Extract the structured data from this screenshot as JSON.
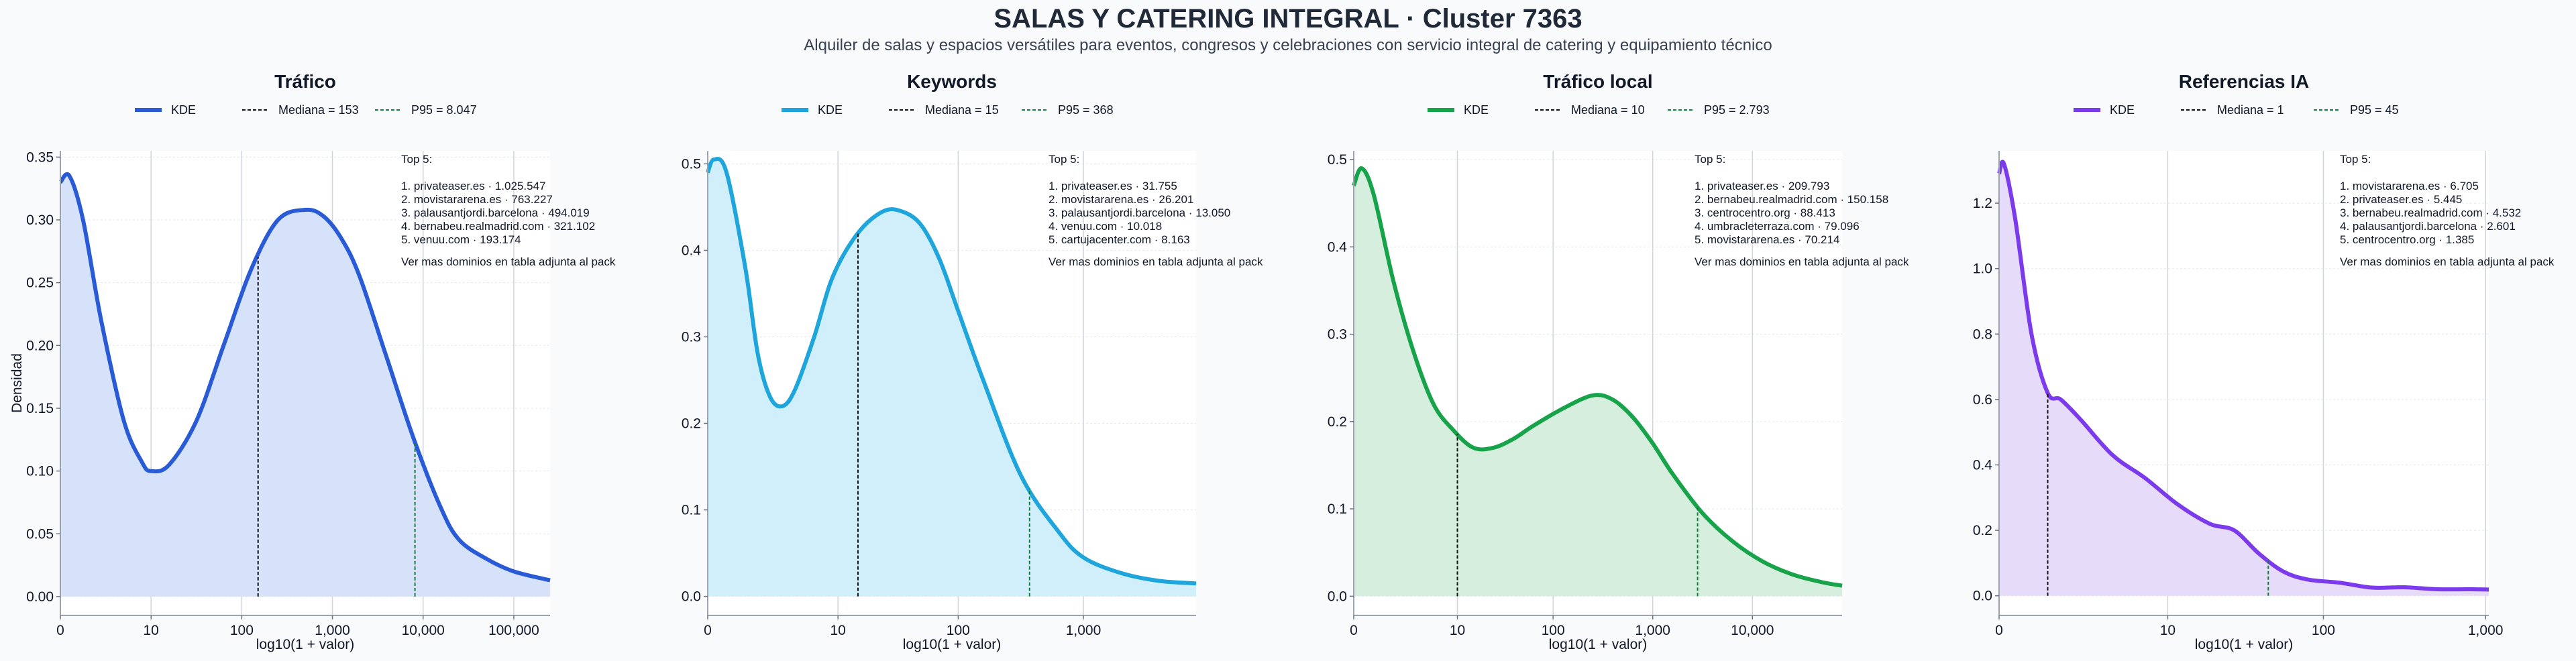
{
  "page": {
    "title": "SALAS Y CATERING INTEGRAL · Cluster 7363",
    "subtitle": "Alquiler de salas y espacios versátiles para eventos, congresos y celebraciones con servicio integral de catering y equipamiento técnico"
  },
  "chart_data": [
    {
      "type": "area",
      "title": "Tráfico",
      "xlabel": "log10(1 + valor)",
      "ylabel": "Densidad",
      "color": "#2a5bd7",
      "fill": "#d6e1fa",
      "xlim": [
        0,
        5.4
      ],
      "ylim": [
        -0.015,
        0.355
      ],
      "xticks": [
        {
          "x": 0,
          "label": "0"
        },
        {
          "x": 1,
          "label": "10"
        },
        {
          "x": 2,
          "label": "100"
        },
        {
          "x": 3,
          "label": "1,000"
        },
        {
          "x": 4,
          "label": "10,000"
        },
        {
          "x": 5,
          "label": "100,000"
        }
      ],
      "yticks": [
        0,
        0.05,
        0.1,
        0.15,
        0.2,
        0.25,
        0.3,
        0.35
      ],
      "ytick_labels": [
        "0.00",
        "0.05",
        "0.10",
        "0.15",
        "0.20",
        "0.25",
        "0.30",
        "0.35"
      ],
      "series": [
        {
          "name": "KDE",
          "x": [
            0,
            0.1,
            0.25,
            0.45,
            0.7,
            0.9,
            1.0,
            1.2,
            1.5,
            1.8,
            2.1,
            2.4,
            2.7,
            2.9,
            3.1,
            3.3,
            3.6,
            3.9,
            4.2,
            4.4,
            4.7,
            5.0,
            5.4
          ],
          "y": [
            0.33,
            0.335,
            0.3,
            0.22,
            0.14,
            0.107,
            0.1,
            0.105,
            0.14,
            0.2,
            0.26,
            0.3,
            0.308,
            0.303,
            0.285,
            0.255,
            0.19,
            0.125,
            0.07,
            0.045,
            0.03,
            0.02,
            0.013
          ]
        }
      ],
      "median": {
        "label": "Mediana = 153",
        "x": 2.18
      },
      "p95": {
        "label": "P95 = 8.047",
        "x": 3.91
      },
      "legend": {
        "kde": "KDE",
        "position": "top"
      },
      "annotation": {
        "heading": "Top 5:",
        "lines": [
          "1. privateaser.es · 1.025.547",
          "2. movistararena.es · 763.227",
          "3. palausantjordi.barcelona · 494.019",
          "4. bernabeu.realmadrid.com · 321.102",
          "5. venuu.com · 193.174"
        ],
        "footer": "Ver mas dominios en tabla adjunta al pack"
      }
    },
    {
      "type": "area",
      "title": "Keywords",
      "xlabel": "log10(1 + valor)",
      "ylabel": "",
      "color": "#1ea5dc",
      "fill": "#d1eefb",
      "xlim": [
        0,
        3.9
      ],
      "ylim": [
        -0.022,
        0.515
      ],
      "xticks": [
        {
          "x": 0,
          "label": "0"
        },
        {
          "x": 1.04,
          "label": "10"
        },
        {
          "x": 2.0,
          "label": "100"
        },
        {
          "x": 3.0,
          "label": "1,000"
        }
      ],
      "yticks": [
        0,
        0.1,
        0.2,
        0.3,
        0.4,
        0.5
      ],
      "ytick_labels": [
        "0.0",
        "0.1",
        "0.2",
        "0.3",
        "0.4",
        "0.5"
      ],
      "series": [
        {
          "name": "KDE",
          "x": [
            0,
            0.05,
            0.15,
            0.3,
            0.4,
            0.5,
            0.6,
            0.7,
            0.85,
            1.0,
            1.2,
            1.4,
            1.55,
            1.7,
            1.85,
            2.0,
            2.2,
            2.5,
            2.8,
            3.0,
            3.3,
            3.6,
            3.9
          ],
          "y": [
            0.49,
            0.505,
            0.49,
            0.38,
            0.28,
            0.23,
            0.22,
            0.24,
            0.3,
            0.37,
            0.42,
            0.445,
            0.445,
            0.43,
            0.39,
            0.33,
            0.25,
            0.14,
            0.075,
            0.045,
            0.027,
            0.018,
            0.015
          ]
        }
      ],
      "median": {
        "label": "Mediana = 15",
        "x": 1.2
      },
      "p95": {
        "label": "P95 = 368",
        "x": 2.57
      },
      "legend": {
        "kde": "KDE",
        "position": "top"
      },
      "annotation": {
        "heading": "Top 5:",
        "lines": [
          "1. privateaser.es · 31.755",
          "2. movistararena.es · 26.201",
          "3. palausantjordi.barcelona · 13.050",
          "4. venuu.com · 10.018",
          "5. cartujacenter.com · 8.163"
        ],
        "footer": "Ver mas dominios en tabla adjunta al pack"
      }
    },
    {
      "type": "area",
      "title": "Tráfico local",
      "xlabel": "log10(1 + valor)",
      "ylabel": "",
      "color": "#16a34a",
      "fill": "#d5eedd",
      "xlim": [
        0,
        4.9
      ],
      "ylim": [
        -0.022,
        0.51
      ],
      "xticks": [
        {
          "x": 0,
          "label": "0"
        },
        {
          "x": 1.04,
          "label": "10"
        },
        {
          "x": 2.0,
          "label": "100"
        },
        {
          "x": 3.0,
          "label": "1,000"
        },
        {
          "x": 4.0,
          "label": "10,000"
        }
      ],
      "yticks": [
        0,
        0.1,
        0.2,
        0.3,
        0.4,
        0.5
      ],
      "ytick_labels": [
        "0.0",
        "0.1",
        "0.2",
        "0.3",
        "0.4",
        "0.5"
      ],
      "series": [
        {
          "name": "KDE",
          "x": [
            0,
            0.08,
            0.2,
            0.4,
            0.6,
            0.8,
            1.0,
            1.2,
            1.4,
            1.6,
            1.8,
            2.1,
            2.4,
            2.6,
            2.8,
            3.0,
            3.2,
            3.5,
            3.8,
            4.1,
            4.4,
            4.7,
            4.9
          ],
          "y": [
            0.47,
            0.49,
            0.46,
            0.36,
            0.28,
            0.22,
            0.19,
            0.17,
            0.17,
            0.18,
            0.195,
            0.215,
            0.23,
            0.225,
            0.205,
            0.175,
            0.14,
            0.095,
            0.063,
            0.04,
            0.025,
            0.016,
            0.012
          ]
        }
      ],
      "median": {
        "label": "Mediana = 10",
        "x": 1.04
      },
      "p95": {
        "label": "P95 = 2.793",
        "x": 3.45
      },
      "legend": {
        "kde": "KDE",
        "position": "top"
      },
      "annotation": {
        "heading": "Top 5:",
        "lines": [
          "1. privateaser.es · 209.793",
          "2. bernabeu.realmadrid.com · 150.158",
          "3. centrocentro.org · 88.413",
          "4. umbracleterraza.com · 79.096",
          "5. movistararena.es · 70.214"
        ],
        "footer": "Ver mas dominios en tabla adjunta al pack"
      }
    },
    {
      "type": "area",
      "title": "Referencias IA",
      "xlabel": "log10(1 + valor)",
      "ylabel": "",
      "color": "#7c3aed",
      "fill": "#e6dbf8",
      "xlim": [
        0,
        3.02
      ],
      "ylim": [
        -0.06,
        1.36
      ],
      "xticks": [
        {
          "x": 0,
          "label": "0"
        },
        {
          "x": 1.04,
          "label": "10"
        },
        {
          "x": 2.0,
          "label": "100"
        },
        {
          "x": 3.0,
          "label": "1,000"
        }
      ],
      "yticks": [
        0,
        0.2,
        0.4,
        0.6,
        0.8,
        1.0,
        1.2
      ],
      "ytick_labels": [
        "0.0",
        "0.2",
        "0.4",
        "0.6",
        "0.8",
        "1.0",
        "1.2"
      ],
      "series": [
        {
          "name": "KDE",
          "x": [
            0,
            0.03,
            0.1,
            0.2,
            0.3,
            0.38,
            0.5,
            0.7,
            0.9,
            1.1,
            1.3,
            1.45,
            1.6,
            1.75,
            1.9,
            2.1,
            2.3,
            2.5,
            2.7,
            2.9,
            3.02
          ],
          "y": [
            1.29,
            1.32,
            1.15,
            0.8,
            0.62,
            0.6,
            0.54,
            0.43,
            0.36,
            0.28,
            0.22,
            0.2,
            0.13,
            0.075,
            0.05,
            0.04,
            0.025,
            0.026,
            0.02,
            0.02,
            0.019
          ]
        }
      ],
      "median": {
        "label": "Mediana = 1",
        "x": 0.3
      },
      "p95": {
        "label": "P95 = 45",
        "x": 1.66
      },
      "legend": {
        "kde": "KDE",
        "position": "top"
      },
      "annotation": {
        "heading": "Top 5:",
        "lines": [
          "1. movistararena.es · 6.705",
          "2. privateaser.es · 5.445",
          "3. bernabeu.realmadrid.com · 4.532",
          "4. palausantjordi.barcelona · 2.601",
          "5. centrocentro.org · 1.385"
        ],
        "footer": "Ver mas dominios en tabla adjunta al pack"
      }
    }
  ]
}
